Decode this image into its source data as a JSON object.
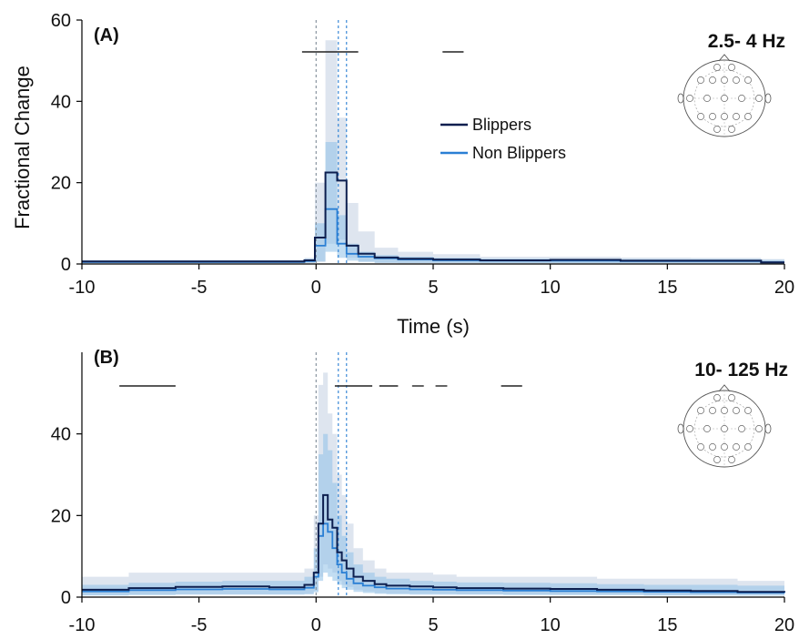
{
  "colors": {
    "blippers": "#0d1f4f",
    "non_blippers": "#2a7fd4",
    "blippers_band": "#c8d3e4",
    "non_blippers_band": "#8fc1e8",
    "vline_gray": "#7f8c99",
    "vline_blue": "#2a7fd4"
  },
  "legend": {
    "placement": "center-right of panel A",
    "items": [
      {
        "label": "Blippers",
        "color": "#0d1f4f"
      },
      {
        "label": "Non Blippers",
        "color": "#2a7fd4"
      }
    ]
  },
  "chart_data": [
    {
      "type": "line",
      "panel_label": "(A)",
      "band_label": "2.5- 4 Hz",
      "icon": "eeg-electrode-head-icon",
      "xlabel": "Time (s)",
      "ylabel": "Fractional Change",
      "xlim": [
        -10,
        20
      ],
      "ylim": [
        0,
        60
      ],
      "xticks": [
        -10,
        -5,
        0,
        5,
        10,
        15,
        20
      ],
      "xtick_labels": [
        "-10",
        "-5",
        "0",
        "5",
        "10",
        "15",
        "20"
      ],
      "yticks": [
        0,
        20,
        40,
        60
      ],
      "ytick_labels": [
        "0",
        "20",
        "40",
        "60"
      ],
      "grid": false,
      "vlines": [
        {
          "x": 0,
          "color": "gray"
        },
        {
          "x": 0.95,
          "color": "blue"
        },
        {
          "x": 1.3,
          "color": "blue"
        }
      ],
      "significance_bars": [
        [
          -0.6,
          1.8
        ],
        [
          5.4,
          6.3
        ]
      ],
      "series": [
        {
          "name": "Blippers",
          "step": true,
          "x": [
            -10,
            -0.5,
            -0.05,
            0.4,
            0.9,
            1.3,
            1.8,
            2.5,
            3.5,
            5,
            7,
            10,
            13,
            16,
            19,
            20
          ],
          "y": [
            0.6,
            0.9,
            6.5,
            22.5,
            20.5,
            4.5,
            2.5,
            1.6,
            1.3,
            1.1,
            0.9,
            1.0,
            0.8,
            0.8,
            0.4,
            0.4
          ],
          "upper": [
            1.0,
            1.5,
            20,
            55,
            36,
            15,
            8,
            4,
            3,
            2.4,
            1.8,
            1.8,
            1.6,
            1.5,
            1.2,
            1.2
          ],
          "lower": [
            0.2,
            0.3,
            0.5,
            5,
            6,
            1.5,
            0.6,
            0.3,
            0.2,
            0.2,
            0.2,
            0.2,
            0.2,
            0.2,
            0.1,
            0.1
          ]
        },
        {
          "name": "Non Blippers",
          "step": true,
          "x": [
            -10,
            -0.5,
            -0.05,
            0.4,
            0.9,
            1.3,
            1.8,
            2.5,
            3.5,
            5,
            7,
            10,
            13,
            16,
            19,
            20
          ],
          "y": [
            0.5,
            0.7,
            4.5,
            13.5,
            5.0,
            2.5,
            1.8,
            1.4,
            1.1,
            0.9,
            0.8,
            0.8,
            0.7,
            0.7,
            0.4,
            0.4
          ],
          "upper": [
            0.9,
            1.3,
            10,
            30,
            12,
            5,
            3,
            2.2,
            1.8,
            1.5,
            1.3,
            1.3,
            1.2,
            1.2,
            1.0,
            1.0
          ],
          "lower": [
            0.2,
            0.3,
            0.6,
            3,
            1.5,
            0.8,
            0.5,
            0.3,
            0.3,
            0.3,
            0.2,
            0.2,
            0.2,
            0.2,
            0.1,
            0.1
          ]
        }
      ]
    },
    {
      "type": "line",
      "panel_label": "(B)",
      "band_label": "10- 125 Hz",
      "icon": "eeg-electrode-head-icon",
      "xlabel": "",
      "ylabel": "",
      "xlim": [
        -10,
        20
      ],
      "ylim": [
        0,
        60
      ],
      "xticks": [
        -10,
        -5,
        0,
        5,
        10,
        15,
        20
      ],
      "xtick_labels": [
        "-10",
        "-5",
        "0",
        "5",
        "10",
        "15",
        "20"
      ],
      "yticks": [
        0,
        20,
        40
      ],
      "ytick_labels": [
        "0",
        "20",
        "40"
      ],
      "grid": false,
      "vlines": [
        {
          "x": 0,
          "color": "gray"
        },
        {
          "x": 0.95,
          "color": "blue"
        },
        {
          "x": 1.3,
          "color": "blue"
        }
      ],
      "significance_bars": [
        [
          -8.4,
          -6.0
        ],
        [
          0.8,
          2.4
        ],
        [
          2.7,
          3.5
        ],
        [
          4.1,
          4.6
        ],
        [
          5.1,
          5.6
        ],
        [
          7.9,
          8.8
        ]
      ],
      "series": [
        {
          "name": "Blippers",
          "step": true,
          "x": [
            -10,
            -8,
            -6,
            -4,
            -2,
            -0.5,
            -0.1,
            0.1,
            0.3,
            0.5,
            0.7,
            0.9,
            1.1,
            1.3,
            1.6,
            2.0,
            2.5,
            3,
            4,
            5,
            6,
            8,
            10,
            12,
            14,
            16,
            18,
            20
          ],
          "y": [
            1.8,
            2.2,
            2.5,
            2.6,
            2.4,
            3.0,
            6,
            18,
            25,
            19,
            17,
            11,
            9,
            7,
            5,
            4,
            3.2,
            2.8,
            2.6,
            2.4,
            2.2,
            2.1,
            2.0,
            1.8,
            1.6,
            1.5,
            1.3,
            1.2
          ],
          "upper": [
            5,
            6,
            6,
            6,
            6,
            7,
            20,
            52,
            55,
            45,
            40,
            30,
            25,
            18,
            12,
            9,
            7,
            6,
            6,
            5.5,
            5,
            5,
            5,
            4.5,
            4.5,
            4.5,
            4,
            4
          ],
          "lower": [
            0.5,
            0.6,
            0.7,
            0.7,
            0.7,
            0.8,
            1.5,
            5,
            8,
            7,
            6,
            4,
            3,
            2.5,
            1.8,
            1.4,
            1.0,
            0.9,
            0.8,
            0.8,
            0.7,
            0.7,
            0.6,
            0.6,
            0.5,
            0.5,
            0.4,
            0.4
          ]
        },
        {
          "name": "Non Blippers",
          "step": true,
          "x": [
            -10,
            -8,
            -6,
            -4,
            -2,
            -0.5,
            -0.1,
            0.1,
            0.3,
            0.5,
            0.7,
            0.9,
            1.1,
            1.3,
            1.6,
            2.0,
            2.5,
            3,
            4,
            5,
            6,
            8,
            10,
            12,
            14,
            16,
            18,
            20
          ],
          "y": [
            1.4,
            1.7,
            1.9,
            2.0,
            1.9,
            2.3,
            5,
            15,
            18,
            16,
            12,
            8,
            6,
            4.5,
            3.4,
            2.8,
            2.4,
            2.1,
            1.9,
            1.8,
            1.7,
            1.6,
            1.5,
            1.4,
            1.3,
            1.2,
            1.1,
            1.0
          ],
          "upper": [
            3,
            3.5,
            3.8,
            4,
            4,
            5,
            12,
            35,
            40,
            36,
            28,
            20,
            15,
            11,
            8,
            6,
            5,
            4.5,
            4,
            3.8,
            3.6,
            3.5,
            3.4,
            3.2,
            3,
            3,
            2.8,
            2.8
          ],
          "lower": [
            0.4,
            0.5,
            0.6,
            0.6,
            0.6,
            0.7,
            1.2,
            4,
            6,
            5,
            4,
            3,
            2.2,
            1.8,
            1.3,
            1.0,
            0.8,
            0.7,
            0.6,
            0.6,
            0.6,
            0.5,
            0.5,
            0.5,
            0.4,
            0.4,
            0.4,
            0.4
          ]
        }
      ]
    }
  ]
}
